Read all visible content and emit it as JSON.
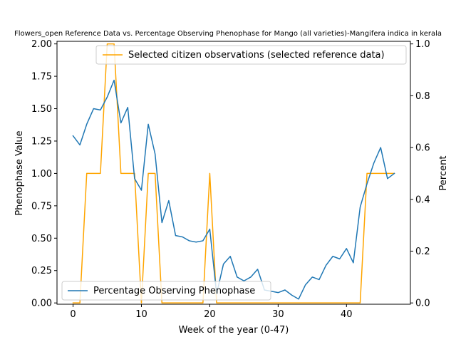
{
  "chart_data": {
    "type": "line",
    "title": "Flowers_open Reference Data vs. Percentage Observing Phenophase for Mango (all varieties)-Mangifera indica in kerala",
    "xlabel": "Week of the year (0-47)",
    "ylabel_left": "Phenophase Value",
    "ylabel_right": "Percent",
    "xlim": [
      -2.35,
      49.35
    ],
    "ylim_left": [
      -0.01,
      2.02
    ],
    "ylim_right": [
      -0.005,
      1.01
    ],
    "x_ticks": [
      0,
      10,
      20,
      30,
      40
    ],
    "x_tick_labels": [
      "0",
      "10",
      "20",
      "30",
      "40"
    ],
    "y_left_ticks": [
      0.0,
      0.25,
      0.5,
      0.75,
      1.0,
      1.25,
      1.5,
      1.75,
      2.0
    ],
    "y_left_tick_labels": [
      "0.00",
      "0.25",
      "0.50",
      "0.75",
      "1.00",
      "1.25",
      "1.50",
      "1.75",
      "2.00"
    ],
    "y_right_ticks": [
      0.0,
      0.2,
      0.4,
      0.6,
      0.8,
      1.0
    ],
    "y_right_tick_labels": [
      "0.0",
      "0.2",
      "0.4",
      "0.6",
      "0.8",
      "1.0"
    ],
    "grid": false,
    "series": [
      {
        "name": "Selected citizen observations (selected reference data)",
        "axis": "left",
        "color": "#ffa500",
        "legend_position": "upper right",
        "points": [
          [
            0,
            0
          ],
          [
            1,
            0
          ],
          [
            2,
            1
          ],
          [
            3,
            1
          ],
          [
            4,
            1
          ],
          [
            5,
            2
          ],
          [
            6,
            2
          ],
          [
            7,
            1
          ],
          [
            8,
            1
          ],
          [
            9,
            1
          ],
          [
            10,
            0
          ],
          [
            11,
            1
          ],
          [
            12,
            1
          ],
          [
            13,
            0
          ],
          [
            14,
            0
          ],
          [
            15,
            0
          ],
          [
            16,
            0
          ],
          [
            17,
            0
          ],
          [
            18,
            0
          ],
          [
            19,
            0
          ],
          [
            20,
            1
          ],
          [
            21,
            0
          ],
          [
            22,
            0
          ],
          [
            23,
            0
          ],
          [
            24,
            0
          ],
          [
            25,
            0
          ],
          [
            26,
            0
          ],
          [
            27,
            0
          ],
          [
            28,
            0
          ],
          [
            29,
            0
          ],
          [
            30,
            0
          ],
          [
            31,
            0
          ],
          [
            32,
            0
          ],
          [
            33,
            0
          ],
          [
            34,
            0
          ],
          [
            35,
            0
          ],
          [
            36,
            0
          ],
          [
            37,
            0
          ],
          [
            38,
            0
          ],
          [
            39,
            0
          ],
          [
            40,
            0
          ],
          [
            41,
            0
          ],
          [
            42,
            0
          ],
          [
            43,
            1
          ],
          [
            44,
            1
          ],
          [
            45,
            1
          ],
          [
            46,
            1
          ],
          [
            47,
            1
          ]
        ]
      },
      {
        "name": "Percentage Observing Phenophase",
        "axis": "right",
        "color": "#1f77b4",
        "legend_position": "lower left",
        "points": [
          [
            0,
            0.645
          ],
          [
            1,
            0.61
          ],
          [
            2,
            0.69
          ],
          [
            3,
            0.75
          ],
          [
            4,
            0.745
          ],
          [
            5,
            0.795
          ],
          [
            6,
            0.86
          ],
          [
            7,
            0.695
          ],
          [
            8,
            0.755
          ],
          [
            9,
            0.48
          ],
          [
            10,
            0.435
          ],
          [
            11,
            0.69
          ],
          [
            12,
            0.575
          ],
          [
            13,
            0.31
          ],
          [
            14,
            0.395
          ],
          [
            15,
            0.26
          ],
          [
            16,
            0.255
          ],
          [
            17,
            0.24
          ],
          [
            18,
            0.235
          ],
          [
            19,
            0.24
          ],
          [
            20,
            0.285
          ],
          [
            21,
            0.035
          ],
          [
            22,
            0.15
          ],
          [
            23,
            0.18
          ],
          [
            24,
            0.1
          ],
          [
            25,
            0.085
          ],
          [
            26,
            0.1
          ],
          [
            27,
            0.13
          ],
          [
            28,
            0.05
          ],
          [
            29,
            0.045
          ],
          [
            30,
            0.04
          ],
          [
            31,
            0.05
          ],
          [
            32,
            0.03
          ],
          [
            33,
            0.015
          ],
          [
            34,
            0.07
          ],
          [
            35,
            0.1
          ],
          [
            36,
            0.09
          ],
          [
            37,
            0.145
          ],
          [
            38,
            0.18
          ],
          [
            39,
            0.17
          ],
          [
            40,
            0.21
          ],
          [
            41,
            0.155
          ],
          [
            42,
            0.37
          ],
          [
            43,
            0.46
          ],
          [
            44,
            0.54
          ],
          [
            45,
            0.6
          ],
          [
            46,
            0.48
          ],
          [
            47,
            0.5
          ]
        ]
      }
    ]
  }
}
